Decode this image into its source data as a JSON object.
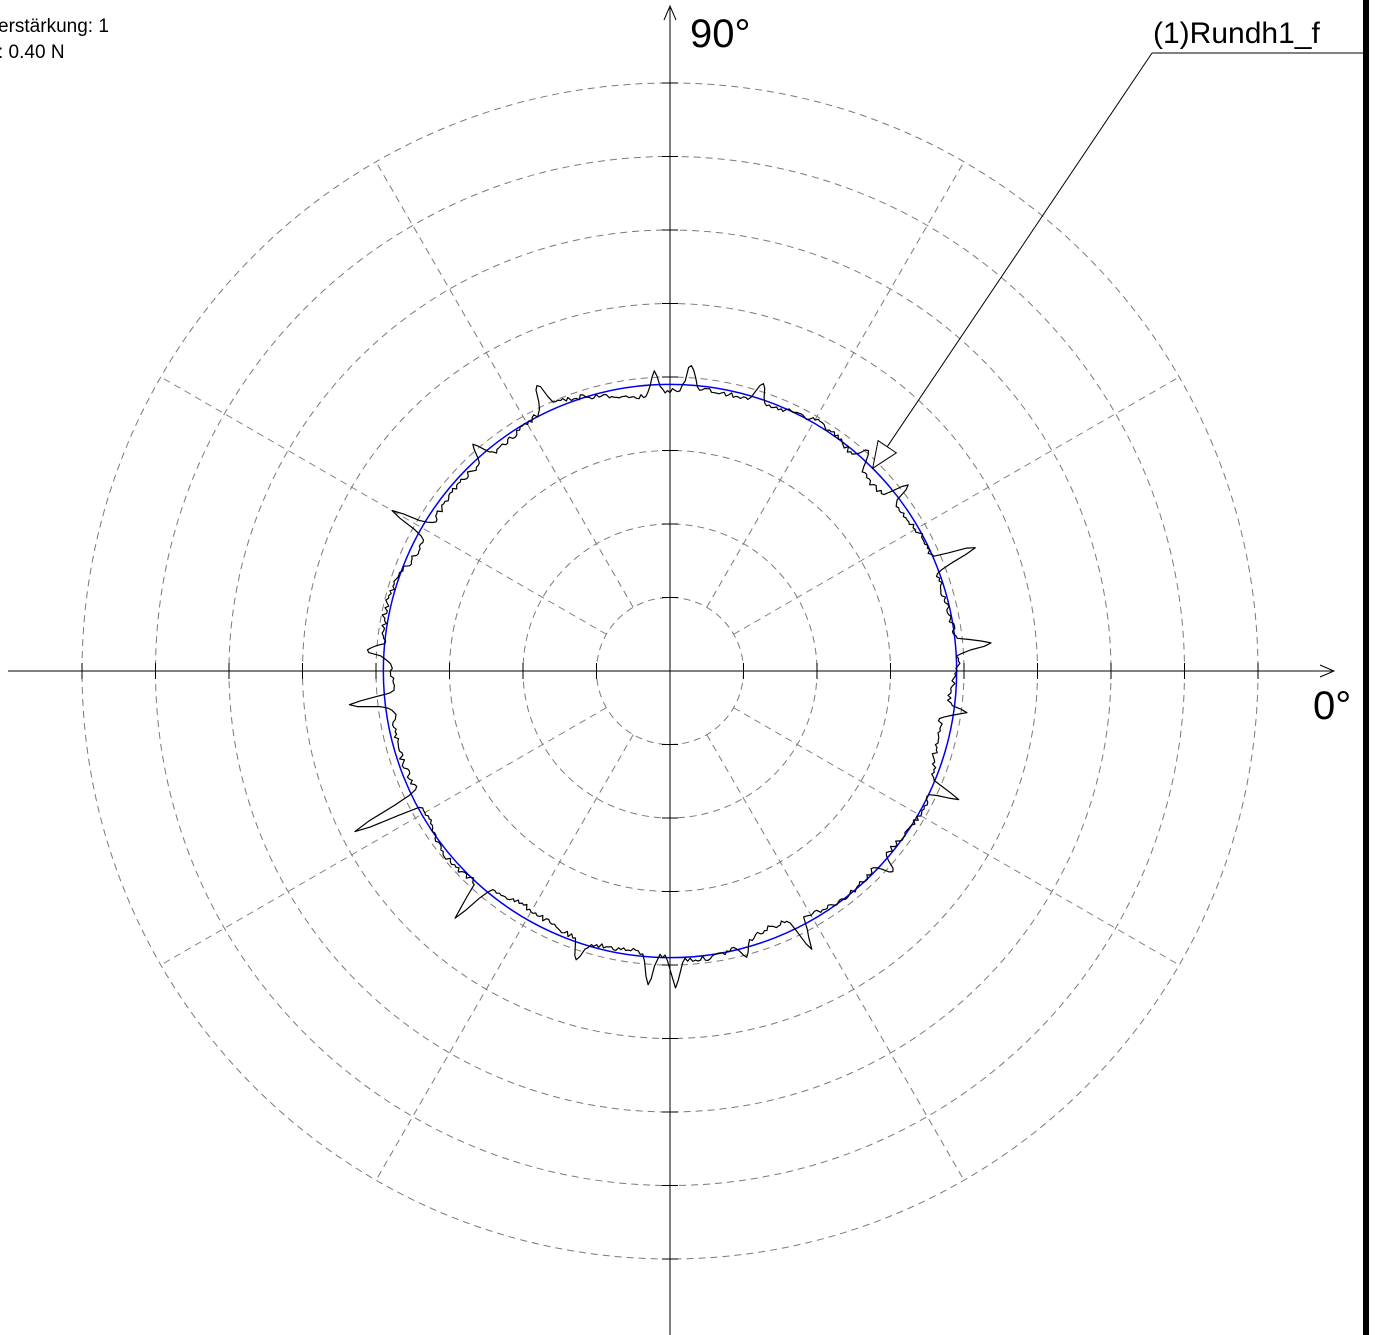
{
  "info": {
    "line1": "erstärkung: 1",
    "line2": ": 0.40 N"
  },
  "axis_labels": {
    "deg90": "90°",
    "deg0": "0°"
  },
  "legend": {
    "series_label": "(1)Rundh1_f"
  },
  "colors": {
    "grid": "#7a7a7a",
    "axes": "#000000",
    "profile": "#000000",
    "reference_circle": "#0000ee"
  },
  "chart_data": {
    "type": "polar-profile",
    "title": "",
    "angle_labels": [
      {
        "angle_deg": 0,
        "label": "0°"
      },
      {
        "angle_deg": 90,
        "label": "90°"
      }
    ],
    "radial_rings": 8,
    "radial_ring_max": 8,
    "spoke_angles_deg": [
      0,
      30,
      60,
      90,
      120,
      150,
      180,
      210,
      240,
      270,
      300,
      330
    ],
    "reference_circle_radius": 3.9,
    "baseline_radius": 3.85,
    "series": [
      {
        "name": "(1)Rundh1_f",
        "baseline": 3.85,
        "spikes": [
          {
            "angle_deg": 5,
            "amplitude": 0.45
          },
          {
            "angle_deg": 22,
            "amplitude": 0.6
          },
          {
            "angle_deg": 38,
            "amplitude": 0.35
          },
          {
            "angle_deg": 48,
            "amplitude": 0.25
          },
          {
            "angle_deg": 72,
            "amplitude": 0.3
          },
          {
            "angle_deg": 86,
            "amplitude": 0.35
          },
          {
            "angle_deg": 93,
            "amplitude": 0.3
          },
          {
            "angle_deg": 115,
            "amplitude": 0.35
          },
          {
            "angle_deg": 131,
            "amplitude": 0.3
          },
          {
            "angle_deg": 150,
            "amplitude": 0.55
          },
          {
            "angle_deg": 176,
            "amplitude": 0.3
          },
          {
            "angle_deg": 186,
            "amplitude": 0.6
          },
          {
            "angle_deg": 207,
            "amplitude": 1.0
          },
          {
            "angle_deg": 229,
            "amplitude": 0.55
          },
          {
            "angle_deg": 252,
            "amplitude": 0.3
          },
          {
            "angle_deg": 266,
            "amplitude": 0.4
          },
          {
            "angle_deg": 271,
            "amplitude": 0.4
          },
          {
            "angle_deg": 285,
            "amplitude": 0.2
          },
          {
            "angle_deg": 297,
            "amplitude": 0.45
          },
          {
            "angle_deg": 318,
            "amplitude": 0.25
          },
          {
            "angle_deg": 336,
            "amplitude": 0.4
          },
          {
            "angle_deg": 352,
            "amplitude": 0.3
          }
        ]
      }
    ],
    "legend_arrow_target_angle_deg": 45
  }
}
